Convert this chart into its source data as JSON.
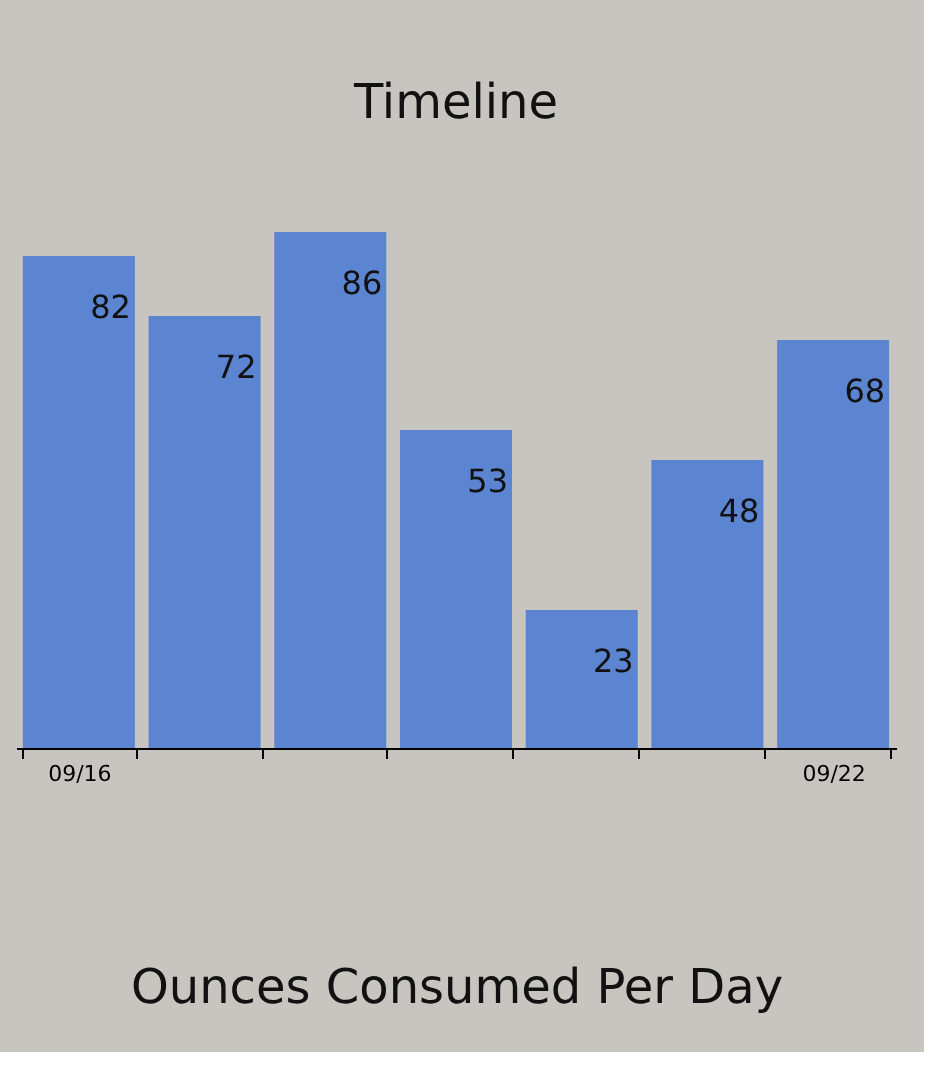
{
  "chart_data": {
    "type": "bar",
    "title": "Timeline",
    "xlabel": "Ounces Consumed Per Day",
    "categories": [
      "09/16",
      null,
      null,
      null,
      null,
      null,
      "09/22"
    ],
    "values": [
      82,
      72,
      86,
      53,
      23,
      48,
      68
    ],
    "color": "#5b84d1",
    "data_labels": true,
    "grid": false,
    "tick_labels": "x"
  }
}
